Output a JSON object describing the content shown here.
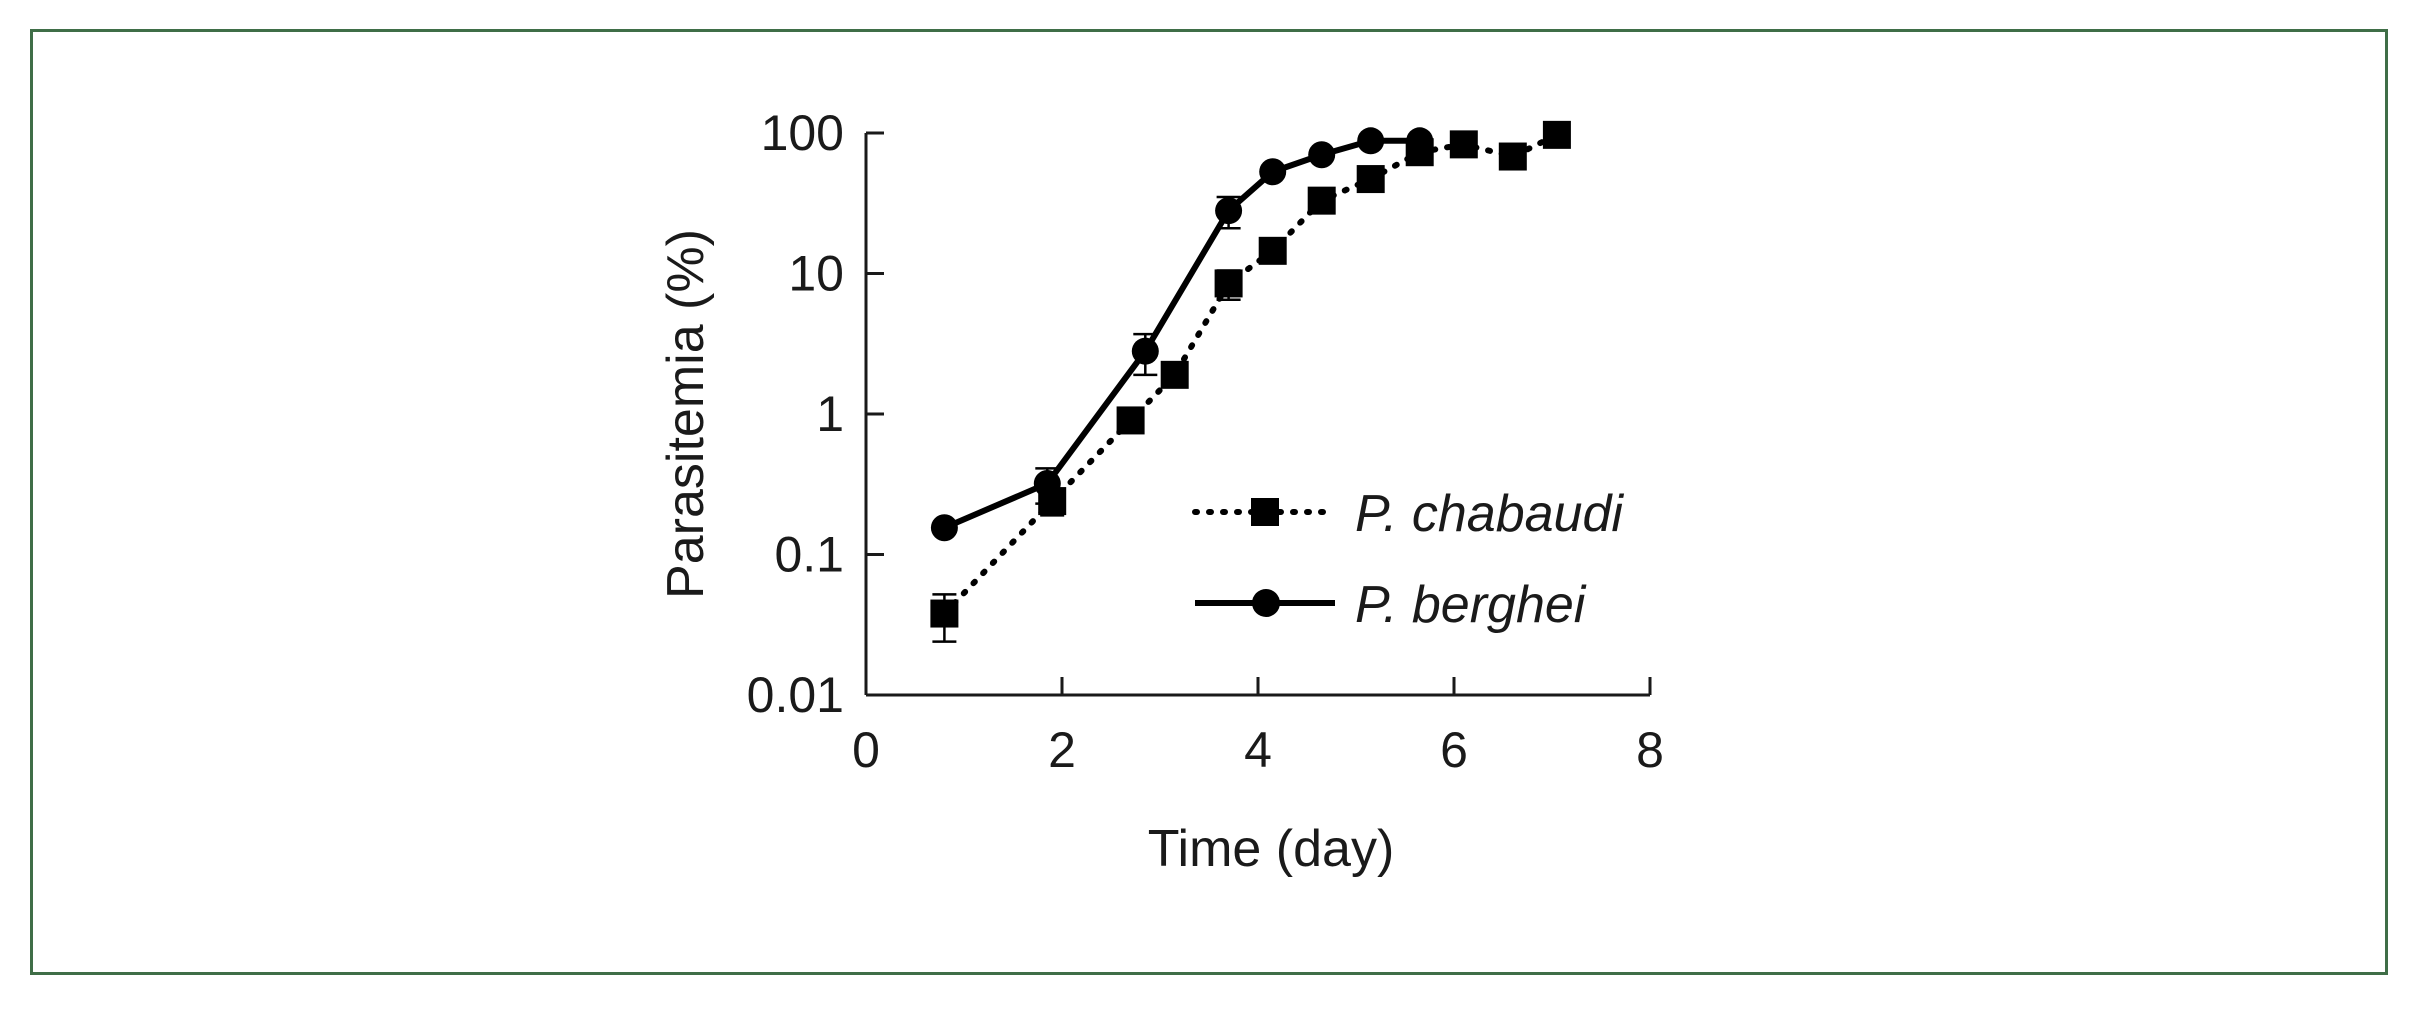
{
  "chart_data": {
    "type": "line",
    "title": "",
    "xlabel": "Time (day)",
    "ylabel": "Parasitemia (%)",
    "xlim": [
      0,
      8
    ],
    "ylim": [
      0.01,
      100
    ],
    "yscale": "log",
    "x_ticks": [
      0,
      2,
      4,
      6,
      8
    ],
    "x_tick_labels": [
      "0",
      "2",
      "4",
      "6",
      "8"
    ],
    "y_ticks": [
      0.01,
      0.1,
      1,
      10,
      100
    ],
    "y_tick_labels": [
      "0.01",
      "0.1",
      "1",
      "10",
      "100"
    ],
    "grid": false,
    "legend_position": "center-right",
    "series": [
      {
        "name": "P. chabaudi",
        "line_style": "dotted",
        "marker": "square",
        "color": "#000000",
        "x": [
          0.8,
          1.9,
          2.7,
          3.15,
          3.7,
          4.15,
          4.65,
          5.15,
          5.65,
          6.1,
          6.6,
          7.05
        ],
        "y": [
          0.038,
          0.24,
          0.9,
          1.9,
          8.5,
          14.5,
          33,
          47,
          73,
          83,
          68,
          97
        ],
        "y_err": [
          0.014,
          0.05,
          0.08,
          0.15,
          2.0,
          1.2,
          3.0,
          4.0,
          5.0,
          5.0,
          4.0,
          4.0
        ]
      },
      {
        "name": "P. berghei",
        "line_style": "solid",
        "marker": "circle",
        "color": "#000000",
        "x": [
          0.8,
          1.85,
          2.85,
          3.7,
          4.15,
          4.65,
          5.15,
          5.65
        ],
        "y": [
          0.155,
          0.32,
          2.8,
          28,
          53,
          70,
          88,
          88
        ],
        "y_err": [
          0.01,
          0.09,
          0.9,
          7.0,
          4.0,
          4.0,
          4.0,
          3.0
        ]
      }
    ]
  }
}
